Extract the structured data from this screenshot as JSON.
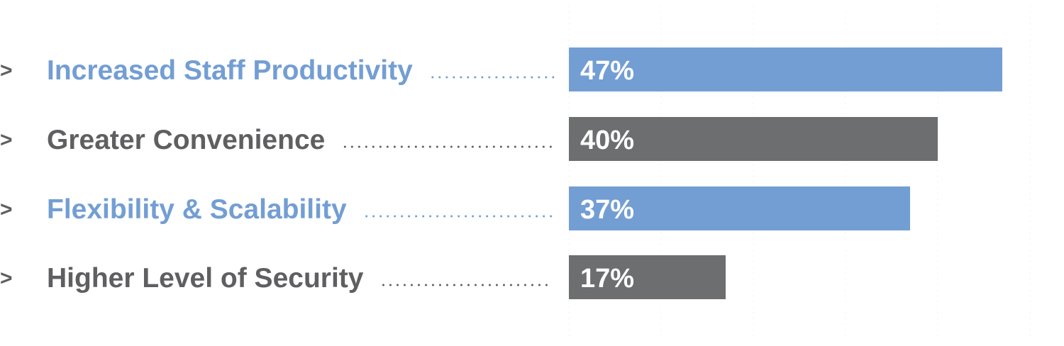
{
  "chart_data": {
    "type": "bar",
    "orientation": "horizontal",
    "title": "",
    "xlabel": "",
    "ylabel": "",
    "xlim": [
      0,
      50
    ],
    "grid": true,
    "categories": [
      "Increased Staff Productivity",
      "Greater Convenience",
      "Flexibility & Scalability",
      "Higher Level of Security"
    ],
    "values": [
      47,
      40,
      37,
      17
    ],
    "value_labels": [
      "47%",
      "40%",
      "37%",
      "17%"
    ],
    "markers": [
      ">",
      ">",
      ">",
      ">"
    ],
    "colors": [
      "#739ed3",
      "#6d6e70",
      "#739ed3",
      "#6d6e70"
    ],
    "label_colors": [
      "#739ed3",
      "#5f5f61",
      "#739ed3",
      "#5f5f61"
    ]
  }
}
